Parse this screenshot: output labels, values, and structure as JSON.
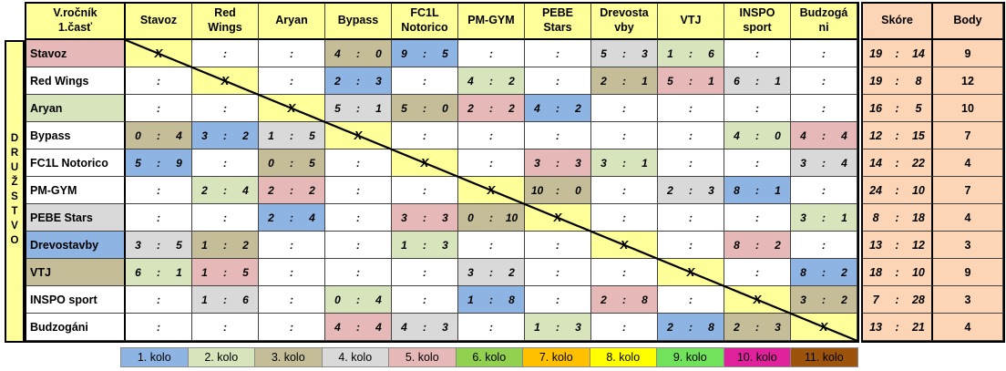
{
  "title": "V.ročník\n1.časť",
  "vertical_label": "DRUŽSTVO",
  "colon_symbol": ":",
  "x_symbol": "X",
  "score_header": "Skóre",
  "body_header": "Body",
  "columns": [
    "Stavoz",
    "Red\nWings",
    "Aryan",
    "Bypass",
    "FC1L\nNotorico",
    "PM-GYM",
    "PEBE\nStars",
    "Drevosta\nvby",
    "VTJ",
    "INSPO\nsport",
    "Budzogá\nni"
  ],
  "colors": {
    "header_bg": "#FFFF99",
    "diagonal_cell_bg": "#FFFF99",
    "score_block_bg": "#FBD5B5",
    "grid_line": "#424242",
    "outer_border": "#000000",
    "rounds": {
      "1": "#8DB4E2",
      "2": "#D8E4BC",
      "3": "#C4BD97",
      "4": "#D9D9D9",
      "5": "#E6B8B7",
      "6": "#92D050",
      "7": "#FFC000",
      "8": "#FFFF00",
      "9": "#70E25B",
      "10": "#E0219C",
      "11": "#9C540D"
    }
  },
  "rows": [
    {
      "team": "Stavoz",
      "bg": "#E6B8B7",
      "cells": [
        {
          "x": true
        },
        {},
        {},
        {
          "a": "4",
          "b": "0",
          "r": 3
        },
        {
          "a": "9",
          "b": "5",
          "r": 1
        },
        {},
        {},
        {
          "a": "5",
          "b": "3",
          "r": 4
        },
        {
          "a": "1",
          "b": "6",
          "r": 2
        },
        {},
        {}
      ],
      "score": {
        "a": "19",
        "b": "14"
      },
      "body": "9"
    },
    {
      "team": "Red Wings",
      "bg": null,
      "cells": [
        {},
        {
          "x": true
        },
        {},
        {
          "a": "2",
          "b": "3",
          "r": 1
        },
        {},
        {
          "a": "4",
          "b": "2",
          "r": 2
        },
        {},
        {
          "a": "2",
          "b": "1",
          "r": 3
        },
        {
          "a": "5",
          "b": "1",
          "r": 5
        },
        {
          "a": "6",
          "b": "1",
          "r": 4
        },
        {}
      ],
      "score": {
        "a": "19",
        "b": "8"
      },
      "body": "12"
    },
    {
      "team": "Aryan",
      "bg": "#D8E4BC",
      "cells": [
        {},
        {},
        {
          "x": true
        },
        {
          "a": "5",
          "b": "1",
          "r": 4
        },
        {
          "a": "5",
          "b": "0",
          "r": 3
        },
        {
          "a": "2",
          "b": "2",
          "r": 5
        },
        {
          "a": "4",
          "b": "2",
          "r": 1
        },
        {},
        {},
        {},
        {}
      ],
      "score": {
        "a": "16",
        "b": "5"
      },
      "body": "10"
    },
    {
      "team": "Bypass",
      "bg": null,
      "cells": [
        {
          "a": "0",
          "b": "4",
          "r": 3
        },
        {
          "a": "3",
          "b": "2",
          "r": 1
        },
        {
          "a": "1",
          "b": "5",
          "r": 4
        },
        {
          "x": true
        },
        {},
        {},
        {},
        {},
        {},
        {
          "a": "4",
          "b": "0",
          "r": 2
        },
        {
          "a": "4",
          "b": "4",
          "r": 5
        }
      ],
      "score": {
        "a": "12",
        "b": "15"
      },
      "body": "7"
    },
    {
      "team": "FC1L Notorico",
      "bg": null,
      "cells": [
        {
          "a": "5",
          "b": "9",
          "r": 1
        },
        {},
        {
          "a": "0",
          "b": "5",
          "r": 3
        },
        {},
        {
          "x": true
        },
        {},
        {
          "a": "3",
          "b": "3",
          "r": 5
        },
        {
          "a": "3",
          "b": "1",
          "r": 2
        },
        {},
        {},
        {
          "a": "3",
          "b": "4",
          "r": 4
        }
      ],
      "score": {
        "a": "14",
        "b": "22"
      },
      "body": "4"
    },
    {
      "team": "PM-GYM",
      "bg": null,
      "cells": [
        {},
        {
          "a": "2",
          "b": "4",
          "r": 2
        },
        {
          "a": "2",
          "b": "2",
          "r": 5
        },
        {},
        {},
        {
          "x": true
        },
        {
          "a": "10",
          "b": "0",
          "r": 3
        },
        {},
        {
          "a": "2",
          "b": "3",
          "r": 4
        },
        {
          "a": "8",
          "b": "1",
          "r": 1
        },
        {}
      ],
      "score": {
        "a": "24",
        "b": "10"
      },
      "body": "7"
    },
    {
      "team": "PEBE Stars",
      "bg": "#D9D9D9",
      "cells": [
        {},
        {},
        {
          "a": "2",
          "b": "4",
          "r": 1
        },
        {},
        {
          "a": "3",
          "b": "3",
          "r": 5
        },
        {
          "a": "0",
          "b": "10",
          "r": 3
        },
        {
          "x": true
        },
        {},
        {},
        {},
        {
          "a": "3",
          "b": "1",
          "r": 2
        }
      ],
      "score": {
        "a": "8",
        "b": "18"
      },
      "body": "4"
    },
    {
      "team": "Drevostavby",
      "bg": "#8DB4E2",
      "cells": [
        {
          "a": "3",
          "b": "5",
          "r": 4
        },
        {
          "a": "1",
          "b": "2",
          "r": 3
        },
        {},
        {},
        {
          "a": "1",
          "b": "3",
          "r": 2
        },
        {},
        {},
        {
          "x": true
        },
        {},
        {
          "a": "8",
          "b": "2",
          "r": 5
        },
        {}
      ],
      "score": {
        "a": "13",
        "b": "12"
      },
      "body": "3"
    },
    {
      "team": "VTJ",
      "bg": "#C4BD97",
      "cells": [
        {
          "a": "6",
          "b": "1",
          "r": 2
        },
        {
          "a": "1",
          "b": "5",
          "r": 5
        },
        {},
        {},
        {},
        {
          "a": "3",
          "b": "2",
          "r": 4
        },
        {},
        {},
        {
          "x": true
        },
        {},
        {
          "a": "8",
          "b": "2",
          "r": 1
        }
      ],
      "score": {
        "a": "18",
        "b": "10"
      },
      "body": "9"
    },
    {
      "team": "INSPO sport",
      "bg": null,
      "cells": [
        {},
        {
          "a": "1",
          "b": "6",
          "r": 4
        },
        {},
        {
          "a": "0",
          "b": "4",
          "r": 2
        },
        {},
        {
          "a": "1",
          "b": "8",
          "r": 1
        },
        {},
        {
          "a": "2",
          "b": "8",
          "r": 5
        },
        {},
        {
          "x": true
        },
        {
          "a": "3",
          "b": "2",
          "r": 3
        }
      ],
      "score": {
        "a": "7",
        "b": "28"
      },
      "body": "3"
    },
    {
      "team": "Budzogáni",
      "bg": null,
      "cells": [
        {},
        {},
        {},
        {
          "a": "4",
          "b": "4",
          "r": 5
        },
        {
          "a": "4",
          "b": "3",
          "r": 4
        },
        {},
        {
          "a": "1",
          "b": "3",
          "r": 2
        },
        {},
        {
          "a": "2",
          "b": "8",
          "r": 1
        },
        {
          "a": "2",
          "b": "3",
          "r": 3
        },
        {
          "x": true
        }
      ],
      "score": {
        "a": "13",
        "b": "21"
      },
      "body": "4"
    }
  ],
  "legend": [
    {
      "label": "1. kolo",
      "color": "#8DB4E2"
    },
    {
      "label": "2. kolo",
      "color": "#D8E4BC"
    },
    {
      "label": "3. kolo",
      "color": "#C4BD97"
    },
    {
      "label": "4. kolo",
      "color": "#D9D9D9"
    },
    {
      "label": "5. kolo",
      "color": "#E6B8B7"
    },
    {
      "label": "6. kolo",
      "color": "#92D050"
    },
    {
      "label": "7. kolo",
      "color": "#FFC000"
    },
    {
      "label": "8. kolo",
      "color": "#FFFF00"
    },
    {
      "label": "9. kolo",
      "color": "#70E25B"
    },
    {
      "label": "10. kolo",
      "color": "#E0219C"
    },
    {
      "label": "11. kolo",
      "color": "#9C540D"
    }
  ]
}
